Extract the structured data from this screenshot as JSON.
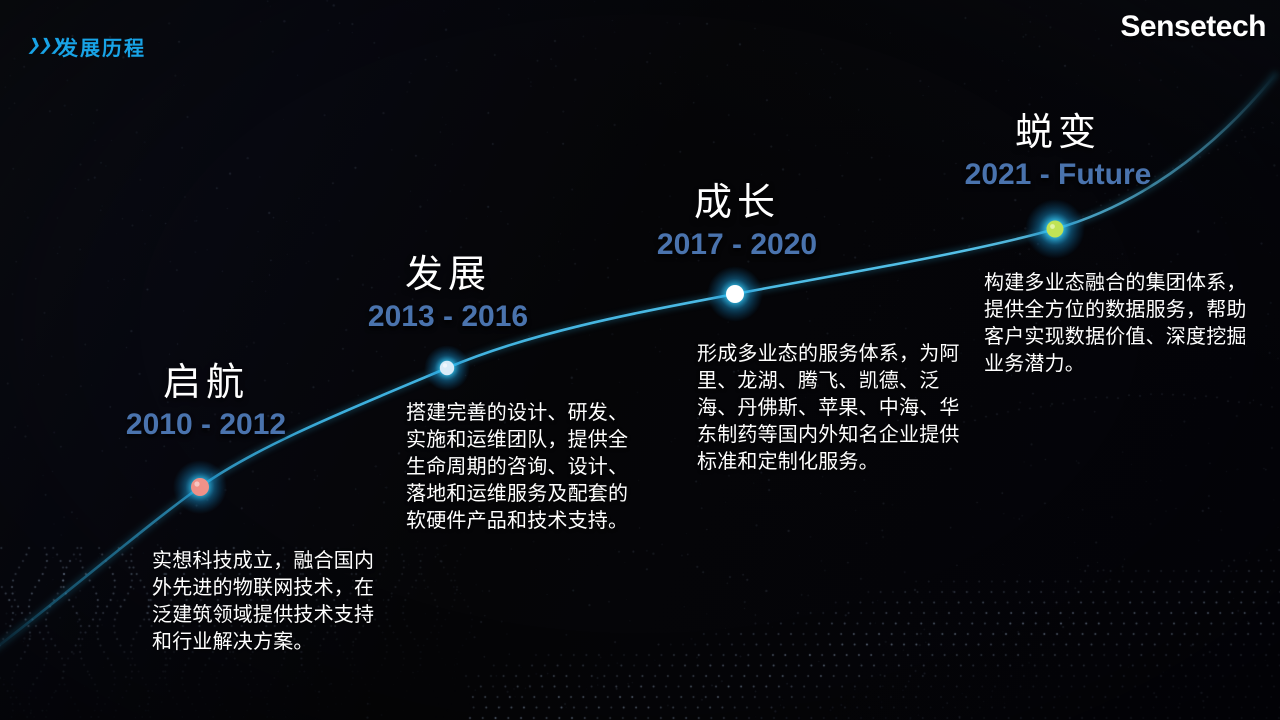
{
  "header": {
    "chevrons_icon": "❯❯❯",
    "title": "发展历程"
  },
  "logo": "Sensetech",
  "colors": {
    "title_blue": "#18a3e6",
    "period_blue": "#4a73ad",
    "curve_cyan": "#45c0ec",
    "glow_cyan": "#23b9ef",
    "background": "#050508"
  },
  "timeline": {
    "milestones": [
      {
        "title": "启航",
        "period": "2010 - 2012",
        "description": "实想科技成立，融合国内外先进的物联网技术，在泛建筑领域提供技术支持和行业解决方案。",
        "dot_color": "#f2938a"
      },
      {
        "title": "发展",
        "period": "2013 - 2016",
        "description": "搭建完善的设计、研发、实施和运维团队，提供全生命周期的咨询、设计、落地和运维服务及配套的软硬件产品和技术支持。",
        "dot_color": "#d9ecf8"
      },
      {
        "title": "成长",
        "period": "2017 - 2020",
        "description": "形成多业态的服务体系，为阿里、龙湖、腾飞、凯德、泛海、丹佛斯、苹果、中海、华东制药等国内外知名企业提供标准和定制化服务。",
        "dot_color": "#ffffff"
      },
      {
        "title": "蜕变",
        "period": "2021 - Future",
        "description": "构建多业态融合的集团体系，提供全方位的数据服务，帮助客户实现数据价值、深度挖掘业务潜力。",
        "dot_color": "#c0e355"
      }
    ]
  }
}
